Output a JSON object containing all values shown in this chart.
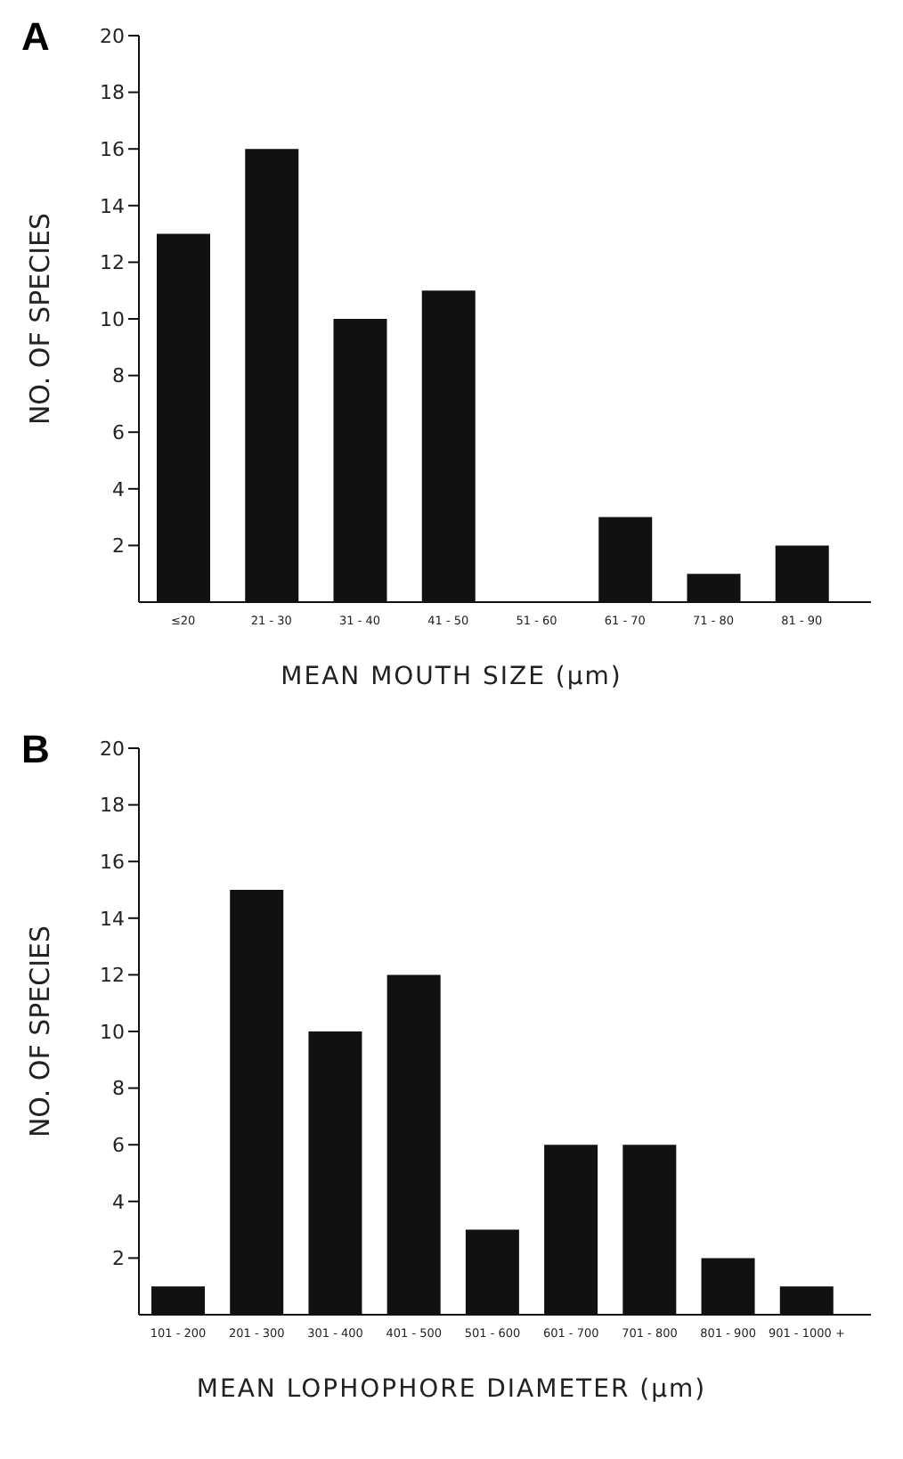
{
  "chart_data": [
    {
      "type": "bar",
      "title": "A",
      "xlabel": "MEAN MOUTH SIZE (µm)",
      "ylabel": "NO. OF SPECIES",
      "categories": [
        "≤20",
        "21 - 30",
        "31 - 40",
        "41 - 50",
        "51 - 60",
        "61 - 70",
        "71 - 80",
        "81 - 90"
      ],
      "values": [
        13,
        16,
        10,
        11,
        0,
        3,
        1,
        2
      ],
      "color": "#111111",
      "ylim": [
        0,
        20
      ],
      "yticks": [
        2,
        4,
        6,
        8,
        10,
        12,
        14,
        16,
        18,
        20
      ],
      "grid": false,
      "legend": false
    },
    {
      "type": "bar",
      "title": "B",
      "xlabel": "MEAN LOPHOPHORE DIAMETER (µm)",
      "ylabel": "NO. OF SPECIES",
      "categories": [
        "101 - 200",
        "201 - 300",
        "301 - 400",
        "401 - 500",
        "501 - 600",
        "601 - 700",
        "701 - 800",
        "801 - 900",
        "901 - 1000 +"
      ],
      "values": [
        1,
        15,
        10,
        12,
        3,
        6,
        6,
        2,
        1
      ],
      "color": "#111111",
      "ylim": [
        0,
        20
      ],
      "yticks": [
        2,
        4,
        6,
        8,
        10,
        12,
        14,
        16,
        18,
        20
      ],
      "grid": false,
      "legend": false
    }
  ]
}
